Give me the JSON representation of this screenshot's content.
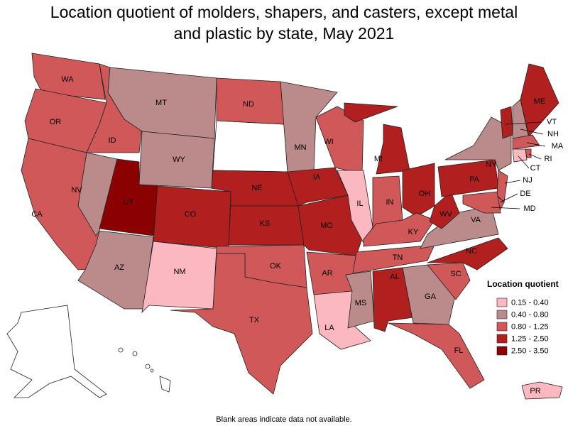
{
  "title": "Location quotient of molders, shapers, and casters, except metal and plastic by state, May 2021",
  "legend": {
    "title": "Location quotient",
    "bins": [
      {
        "label": "0.15 - 0.40",
        "color": "#fbb8c0"
      },
      {
        "label": "0.40 - 0.80",
        "color": "#bb8b8b"
      },
      {
        "label": "0.80 - 1.25",
        "color": "#d05858"
      },
      {
        "label": "1.25 - 2.50",
        "color": "#b21f1f"
      },
      {
        "label": "2.50 - 3.50",
        "color": "#8b0000"
      }
    ]
  },
  "states": [
    {
      "abbr": "WA",
      "bin": 2
    },
    {
      "abbr": "OR",
      "bin": 2
    },
    {
      "abbr": "CA",
      "bin": 2
    },
    {
      "abbr": "ID",
      "bin": 2
    },
    {
      "abbr": "NV",
      "bin": 1
    },
    {
      "abbr": "MT",
      "bin": 1
    },
    {
      "abbr": "WY",
      "bin": 1
    },
    {
      "abbr": "UT",
      "bin": 4
    },
    {
      "abbr": "AZ",
      "bin": 1
    },
    {
      "abbr": "CO",
      "bin": 3
    },
    {
      "abbr": "NM",
      "bin": 0
    },
    {
      "abbr": "ND",
      "bin": 2
    },
    {
      "abbr": "NE",
      "bin": 3
    },
    {
      "abbr": "KS",
      "bin": 3
    },
    {
      "abbr": "OK",
      "bin": 2
    },
    {
      "abbr": "TX",
      "bin": 2
    },
    {
      "abbr": "MN",
      "bin": 1
    },
    {
      "abbr": "IA",
      "bin": 3
    },
    {
      "abbr": "MO",
      "bin": 3
    },
    {
      "abbr": "AR",
      "bin": 2
    },
    {
      "abbr": "LA",
      "bin": 0
    },
    {
      "abbr": "WI",
      "bin": 2
    },
    {
      "abbr": "IL",
      "bin": 0
    },
    {
      "abbr": "MI",
      "bin": 3
    },
    {
      "abbr": "IN",
      "bin": 2
    },
    {
      "abbr": "OH",
      "bin": 3
    },
    {
      "abbr": "KY",
      "bin": 2
    },
    {
      "abbr": "TN",
      "bin": 2
    },
    {
      "abbr": "MS",
      "bin": 1
    },
    {
      "abbr": "AL",
      "bin": 3
    },
    {
      "abbr": "GA",
      "bin": 1
    },
    {
      "abbr": "FL",
      "bin": 2
    },
    {
      "abbr": "SC",
      "bin": 2
    },
    {
      "abbr": "NC",
      "bin": 3
    },
    {
      "abbr": "VA",
      "bin": 1
    },
    {
      "abbr": "WV",
      "bin": 3
    },
    {
      "abbr": "PA",
      "bin": 3
    },
    {
      "abbr": "NY",
      "bin": 1
    },
    {
      "abbr": "VT",
      "bin": 3
    },
    {
      "abbr": "NH",
      "bin": 1
    },
    {
      "abbr": "ME",
      "bin": 3
    },
    {
      "abbr": "MA",
      "bin": 2
    },
    {
      "abbr": "RI",
      "bin": 2
    },
    {
      "abbr": "CT",
      "bin": 0
    },
    {
      "abbr": "NJ",
      "bin": 2
    },
    {
      "abbr": "DE",
      "bin": 2
    },
    {
      "abbr": "MD",
      "bin": 2
    },
    {
      "abbr": "PR",
      "bin": 0
    }
  ],
  "footnote": "Blank areas indicate data not available."
}
